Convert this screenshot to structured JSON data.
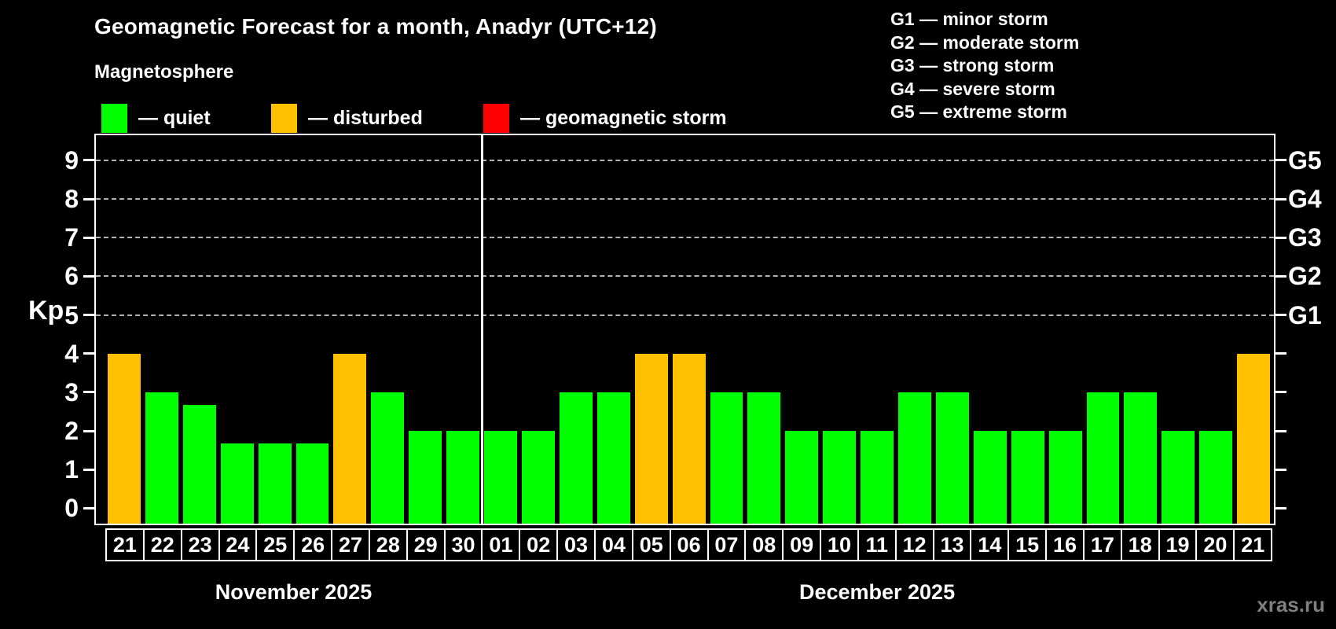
{
  "title": "Geomagnetic Forecast for a month, Anadyr (UTC+12)",
  "subtitle": "Magnetosphere",
  "legend": {
    "quiet_label": "— quiet",
    "disturbed_label": "— disturbed",
    "storm_label": "— geomagnetic storm"
  },
  "g_legend": [
    "G1 — minor storm",
    "G2 — moderate storm",
    "G3 — strong storm",
    "G4 — severe storm",
    "G5 — extreme storm"
  ],
  "axis": {
    "kp_label": "Kp",
    "y_ticks": [
      "0",
      "1",
      "2",
      "3",
      "4",
      "5",
      "6",
      "7",
      "8",
      "9"
    ],
    "g_labels": [
      "G1",
      "G2",
      "G3",
      "G4",
      "G5"
    ]
  },
  "months": [
    {
      "label": "November 2025",
      "days": 10
    },
    {
      "label": "December 2025",
      "days": 21
    }
  ],
  "watermark": "xras.ru",
  "colors": {
    "quiet": "#00ff00",
    "disturbed": "#ffc000",
    "storm": "#ff0000",
    "gridline": "#b3b3b3"
  },
  "chart_data": {
    "type": "bar",
    "title": "Geomagnetic Forecast for a month, Anadyr (UTC+12)",
    "xlabel": "",
    "ylabel": "Kp",
    "ylim": [
      0,
      9
    ],
    "grid_levels": [
      5,
      6,
      7,
      8,
      9
    ],
    "legend_position": "top",
    "categories": [
      "21",
      "22",
      "23",
      "24",
      "25",
      "26",
      "27",
      "28",
      "29",
      "30",
      "01",
      "02",
      "03",
      "04",
      "05",
      "06",
      "07",
      "08",
      "09",
      "10",
      "11",
      "12",
      "13",
      "14",
      "15",
      "16",
      "17",
      "18",
      "19",
      "20",
      "21"
    ],
    "values": [
      4,
      3,
      2.67,
      1.67,
      1.67,
      1.67,
      4,
      3,
      2,
      2,
      2,
      2,
      3,
      3,
      4,
      4,
      3,
      3,
      2,
      2,
      2,
      3,
      3,
      2,
      2,
      2,
      3,
      3,
      2,
      2,
      4
    ],
    "statuses": [
      "disturbed",
      "quiet",
      "quiet",
      "quiet",
      "quiet",
      "quiet",
      "disturbed",
      "quiet",
      "quiet",
      "quiet",
      "quiet",
      "quiet",
      "quiet",
      "quiet",
      "disturbed",
      "disturbed",
      "quiet",
      "quiet",
      "quiet",
      "quiet",
      "quiet",
      "quiet",
      "quiet",
      "quiet",
      "quiet",
      "quiet",
      "quiet",
      "quiet",
      "quiet",
      "quiet",
      "disturbed"
    ],
    "g_scale": {
      "G1": 5,
      "G2": 6,
      "G3": 7,
      "G4": 8,
      "G5": 9
    }
  }
}
